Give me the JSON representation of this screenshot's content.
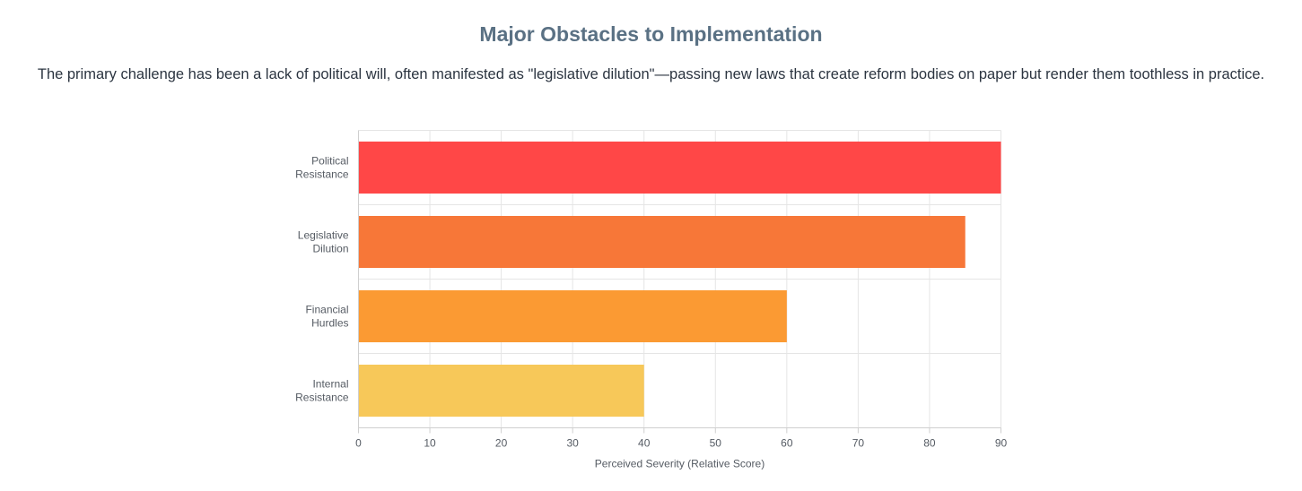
{
  "section": {
    "title": "Major Obstacles to Implementation",
    "description": "The primary challenge has been a lack of political will, often manifested as \"legislative dilution\"—passing new laws that create reform bodies on paper but render them toothless in practice."
  },
  "chart_data": {
    "type": "bar",
    "orientation": "horizontal",
    "categories": [
      [
        "Political",
        "Resistance"
      ],
      [
        "Legislative",
        "Dilution"
      ],
      [
        "Financial",
        "Hurdles"
      ],
      [
        "Internal",
        "Resistance"
      ]
    ],
    "values": [
      90,
      85,
      60,
      40
    ],
    "colors": [
      "#ff4747",
      "#f77738",
      "#fb9a33",
      "#f7c859"
    ],
    "xlabel": "Perceived Severity (Relative Score)",
    "ylabel": "",
    "xlim": [
      0,
      90
    ],
    "xticks": [
      0,
      10,
      20,
      30,
      40,
      50,
      60,
      70,
      80,
      90
    ],
    "grid": true,
    "legend": "none"
  }
}
